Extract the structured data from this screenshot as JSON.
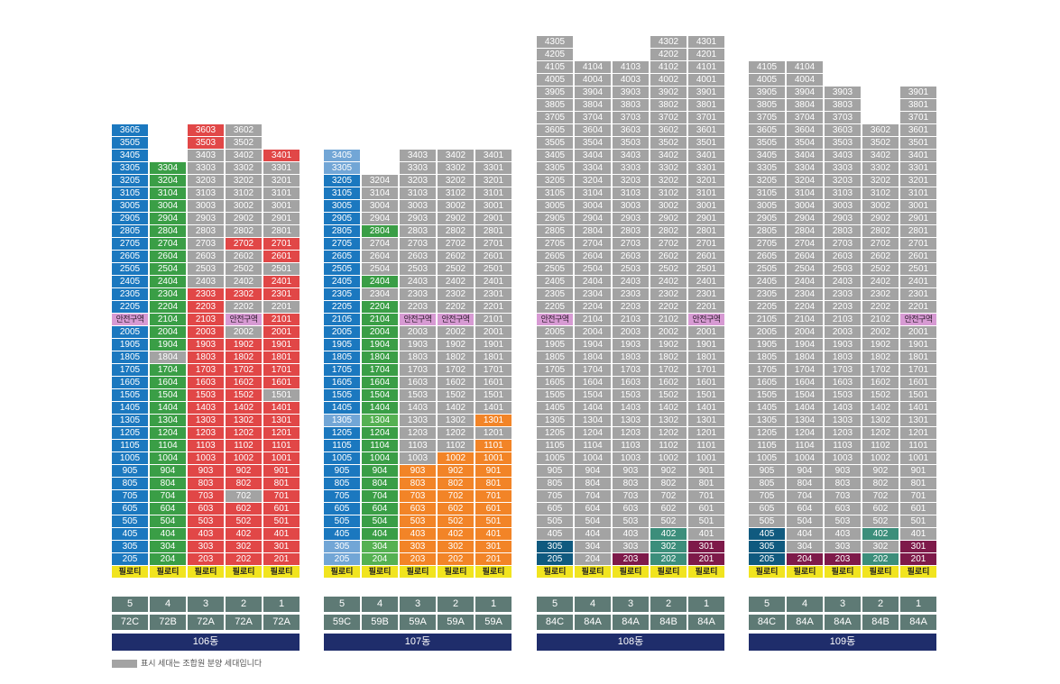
{
  "colors": {
    "blue": "#1b78bf",
    "green": "#3a9e46",
    "red": "#e14747",
    "gray": "#a3a3a3",
    "navy": "#105a7f",
    "lightblue": "#72a6d6",
    "lightgreen": "#55b152",
    "orange": "#f28427",
    "maroon": "#7e1a4a",
    "teal": "#3c8e7b",
    "pink": "#d79ad3",
    "yellow": "#f1e41f",
    "info": "#5e7a75",
    "buildingBar": "#1f2d6b"
  },
  "labels": {
    "piloti": "필로티",
    "safe_zone": "안전구역"
  },
  "legend": {
    "text": "표시 세대는 조합원 분양 세대입니다",
    "swatch_color": "gray"
  },
  "buildings": [
    {
      "name": "106동",
      "lines": [
        "5",
        "4",
        "3",
        "2",
        "1"
      ],
      "types": [
        "72C",
        "72B",
        "72A",
        "72A",
        "72A"
      ],
      "columns": [
        {
          "line": "05",
          "top": 36,
          "safe_floor": 21,
          "colors": {
            "default": "blue"
          }
        },
        {
          "line": "04",
          "top": 33,
          "safe_floor": null,
          "colors": {
            "default": "green",
            "18": "gray"
          }
        },
        {
          "line": "03",
          "top": 36,
          "safe_floor": null,
          "colors": {
            "default": "red",
            "24-34": "gray"
          }
        },
        {
          "line": "02",
          "top": 36,
          "safe_floor": 21,
          "colors": {
            "default": "red",
            "7": "gray",
            "20": "gray",
            "22": "gray",
            "24-26": "gray",
            "28-36": "gray"
          }
        },
        {
          "line": "01",
          "top": 34,
          "safe_floor": null,
          "colors": {
            "default": "red",
            "15": "gray",
            "22": "gray",
            "25": "gray",
            "28-33": "gray"
          }
        }
      ]
    },
    {
      "name": "107동",
      "lines": [
        "5",
        "4",
        "3",
        "2",
        "1"
      ],
      "types": [
        "59C",
        "59B",
        "59A",
        "59A",
        "59A"
      ],
      "columns": [
        {
          "line": "05",
          "top": 34,
          "safe_floor": null,
          "colors": {
            "default": "blue",
            "2-3": "lightblue",
            "13": "lightblue",
            "33-34": "lightblue"
          }
        },
        {
          "line": "04",
          "top": 32,
          "safe_floor": null,
          "colors": {
            "default": "green",
            "2-3": "lightgreen",
            "13": "lightgreen",
            "23": "gray",
            "25-27": "gray",
            "29-32": "gray"
          }
        },
        {
          "line": "03",
          "top": 34,
          "safe_floor": 21,
          "colors": {
            "default": "gray",
            "2-9": "orange"
          }
        },
        {
          "line": "02",
          "top": 34,
          "safe_floor": 21,
          "colors": {
            "default": "gray",
            "2-10": "orange"
          }
        },
        {
          "line": "01",
          "top": 34,
          "safe_floor": null,
          "colors": {
            "default": "gray",
            "2-11": "orange",
            "13": "orange"
          }
        }
      ]
    },
    {
      "name": "108동",
      "lines": [
        "5",
        "4",
        "3",
        "2",
        "1"
      ],
      "types": [
        "84C",
        "84A",
        "84A",
        "84B",
        "84A"
      ],
      "columns": [
        {
          "line": "05",
          "top": 43,
          "safe_floor": 21,
          "colors": {
            "default": "gray",
            "2-3": "navy"
          }
        },
        {
          "line": "04",
          "top": 41,
          "safe_floor": null,
          "colors": {
            "default": "gray"
          }
        },
        {
          "line": "03",
          "top": 41,
          "safe_floor": null,
          "colors": {
            "default": "gray",
            "2": "maroon"
          }
        },
        {
          "line": "02",
          "top": 43,
          "safe_floor": null,
          "colors": {
            "default": "gray",
            "2-4": "teal"
          }
        },
        {
          "line": "01",
          "top": 43,
          "safe_floor": 21,
          "colors": {
            "default": "gray",
            "2-3": "maroon"
          }
        }
      ]
    },
    {
      "name": "109동",
      "lines": [
        "5",
        "4",
        "3",
        "2",
        "1"
      ],
      "types": [
        "84C",
        "84A",
        "84A",
        "84B",
        "84A"
      ],
      "columns": [
        {
          "line": "05",
          "top": 41,
          "safe_floor": null,
          "colors": {
            "default": "gray",
            "2-4": "navy"
          }
        },
        {
          "line": "04",
          "top": 41,
          "safe_floor": null,
          "colors": {
            "default": "gray",
            "2": "maroon"
          }
        },
        {
          "line": "03",
          "top": 39,
          "safe_floor": null,
          "colors": {
            "default": "gray",
            "2": "maroon"
          }
        },
        {
          "line": "02",
          "top": 36,
          "safe_floor": null,
          "colors": {
            "default": "gray",
            "2": "teal",
            "4": "teal"
          }
        },
        {
          "line": "01",
          "top": 39,
          "safe_floor": 21,
          "colors": {
            "default": "gray",
            "2-3": "maroon"
          }
        }
      ]
    }
  ]
}
